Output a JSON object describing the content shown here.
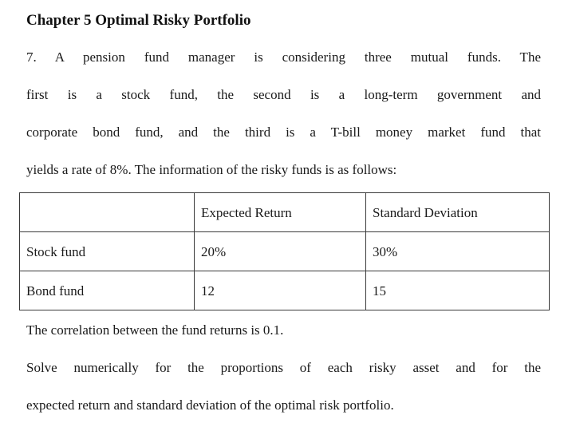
{
  "title": "Chapter 5 Optimal Risky Portfolio",
  "intro": {
    "lines": [
      "7. A pension fund manager is considering three mutual funds. The",
      "first is a stock fund, the second is a long-term government and",
      "corporate bond fund, and the third is a T-bill money market fund that",
      "yields a rate of 8%. The information of the risky funds is as follows:"
    ]
  },
  "table": {
    "headers": [
      "",
      "Expected Return",
      "Standard Deviation"
    ],
    "rows": [
      {
        "label": "Stock fund",
        "expected_return": "20%",
        "std_dev": "30%"
      },
      {
        "label": "Bond fund",
        "expected_return": "12",
        "std_dev": "15"
      }
    ]
  },
  "correlation_note": "The correlation between the fund returns is 0.1.",
  "task": {
    "lines": [
      "Solve numerically for the proportions of each risky asset and for the",
      "expected return and standard deviation of the optimal risk portfolio."
    ]
  }
}
